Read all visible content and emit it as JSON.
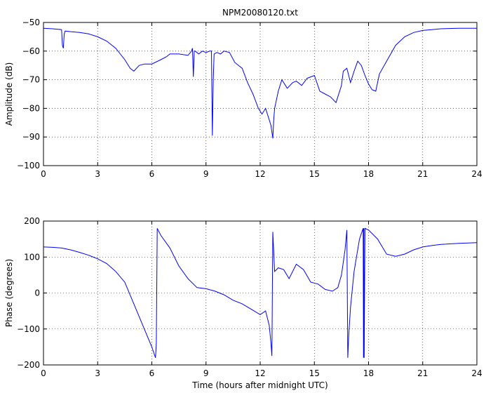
{
  "chart_data": [
    {
      "type": "line",
      "title": "NPM20080120.txt",
      "xlabel": "",
      "ylabel": "Amplitude (dB)",
      "xlim": [
        0,
        24
      ],
      "ylim": [
        -100,
        -50
      ],
      "xticks": [
        "0",
        "3",
        "6",
        "9",
        "12",
        "15",
        "18",
        "21",
        "24"
      ],
      "yticks": [
        "-50",
        "-60",
        "-70",
        "-80",
        "-90",
        "-100"
      ],
      "grid": true,
      "color": "#0000ff",
      "series": [
        {
          "x": [
            0,
            0.5,
            1.0,
            1.05,
            1.1,
            1.15,
            1.2,
            1.5,
            2.0,
            2.5,
            3.0,
            3.5,
            4.0,
            4.5,
            4.8,
            5.0,
            5.3,
            5.6,
            6.0,
            6.5,
            6.8,
            7.0,
            7.5,
            8.0,
            8.2,
            8.25,
            8.3,
            8.35,
            8.4,
            8.6,
            8.8,
            9.0,
            9.2,
            9.3,
            9.35,
            9.4,
            9.45,
            9.6,
            9.8,
            10.0,
            10.3,
            10.6,
            11.0,
            11.3,
            11.6,
            11.9,
            12.1,
            12.3,
            12.5,
            12.6,
            12.7,
            12.75,
            12.8,
            13.0,
            13.2,
            13.5,
            13.8,
            14.0,
            14.3,
            14.6,
            15.0,
            15.3,
            15.6,
            15.9,
            16.2,
            16.5,
            16.6,
            16.8,
            17.0,
            17.2,
            17.4,
            17.6,
            17.8,
            18.0,
            18.2,
            18.4,
            18.6,
            19.0,
            19.5,
            20.0,
            20.5,
            21.0,
            21.5,
            22.0,
            23.0,
            24.0
          ],
          "y": [
            -52,
            -52.2,
            -52.5,
            -58,
            -59,
            -54,
            -53,
            -53.2,
            -53.5,
            -54,
            -55,
            -56.5,
            -59,
            -63,
            -66,
            -67,
            -65,
            -64.5,
            -64.5,
            -63,
            -62,
            -61,
            -61,
            -61.5,
            -60,
            -59,
            -69,
            -60,
            -60,
            -61,
            -60,
            -60.5,
            -60,
            -60,
            -89.5,
            -70,
            -61,
            -60.5,
            -61,
            -60,
            -60.5,
            -64,
            -66,
            -71,
            -75,
            -80,
            -82,
            -80,
            -84,
            -86,
            -90.5,
            -84,
            -80,
            -74,
            -70,
            -73,
            -71,
            -70.5,
            -72,
            -69.5,
            -68.5,
            -74,
            -75,
            -76,
            -78,
            -72,
            -67,
            -66,
            -71,
            -67,
            -63.5,
            -65,
            -68.5,
            -71.5,
            -73.5,
            -74,
            -68,
            -63.5,
            -58,
            -55,
            -53.5,
            -52.8,
            -52.5,
            -52.2,
            -52,
            -52
          ]
        }
      ]
    },
    {
      "type": "line",
      "title": "",
      "xlabel": "Time (hours after midnight UTC)",
      "ylabel": "Phase (degrees)",
      "xlim": [
        0,
        24
      ],
      "ylim": [
        -200,
        200
      ],
      "xticks": [
        "0",
        "3",
        "6",
        "9",
        "12",
        "15",
        "18",
        "21",
        "24"
      ],
      "yticks": [
        "200",
        "100",
        "0",
        "-100",
        "-200"
      ],
      "grid": true,
      "color": "#0000ff",
      "series": [
        {
          "x": [
            0,
            0.5,
            1.0,
            1.5,
            2.0,
            2.5,
            3.0,
            3.5,
            4.0,
            4.5,
            5.0,
            5.5,
            6.0,
            6.2,
            6.25,
            6.3,
            6.5,
            7.0,
            7.5,
            8.0,
            8.5,
            9.0,
            9.5,
            10.0,
            10.5,
            11.0,
            11.5,
            12.0,
            12.3,
            12.5,
            12.6,
            12.65,
            12.7,
            12.8,
            13.0,
            13.3,
            13.6,
            14.0,
            14.4,
            14.8,
            15.2,
            15.6,
            16.0,
            16.3,
            16.5,
            16.7,
            16.8,
            16.85,
            16.9,
            17.0,
            17.2,
            17.5,
            17.7,
            17.72,
            17.74,
            17.76,
            17.8,
            18.0,
            18.5,
            19.0,
            19.5,
            20.0,
            20.5,
            21.0,
            21.5,
            22.0,
            23.0,
            24.0
          ],
          "y": [
            128,
            127,
            125,
            120,
            113,
            105,
            95,
            82,
            60,
            30,
            -30,
            -90,
            -150,
            -180,
            -140,
            180,
            160,
            125,
            75,
            40,
            15,
            12,
            5,
            -5,
            -20,
            -30,
            -45,
            -60,
            -50,
            -90,
            -140,
            -175,
            170,
            60,
            70,
            65,
            40,
            80,
            65,
            30,
            25,
            10,
            5,
            15,
            50,
            120,
            175,
            -180,
            -120,
            -40,
            60,
            150,
            180,
            -180,
            180,
            -180,
            180,
            175,
            150,
            108,
            102,
            108,
            120,
            128,
            132,
            135,
            138,
            140
          ]
        }
      ]
    }
  ]
}
